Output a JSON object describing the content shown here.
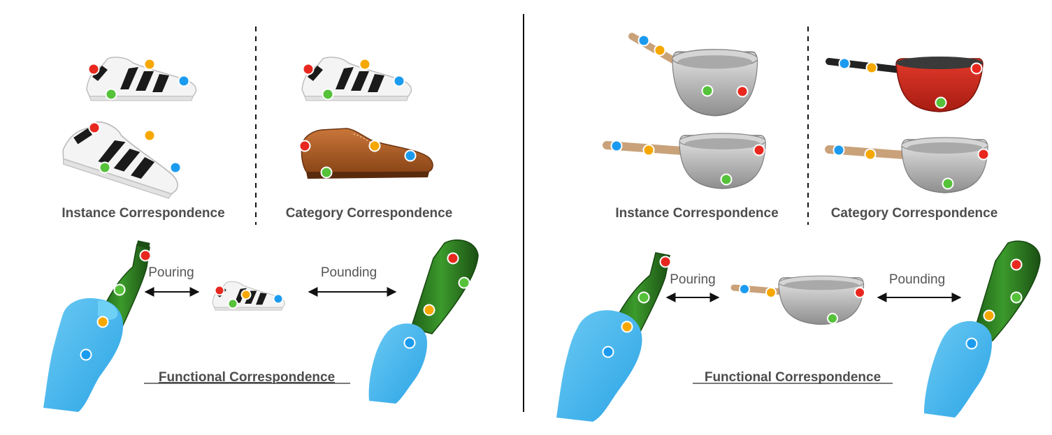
{
  "colors": {
    "red": "#e8281f",
    "orange": "#f6a800",
    "blue": "#1b9bf0",
    "green": "#55c23a",
    "hand": "#49b8ee",
    "bottle": "#2f7d22",
    "label_text": "#4d4d4d",
    "divider": "#111111"
  },
  "left_panel": {
    "instance_label": "Instance Correspondence",
    "category_label": "Category Correspondence",
    "action_left": "Pouring",
    "action_right": "Pounding",
    "functional_label": "Functional Correspondence",
    "objects": [
      "sneaker-icon",
      "brogue-shoe-icon",
      "bottle-icon",
      "hand-icon"
    ]
  },
  "right_panel": {
    "instance_label": "Instance Correspondence",
    "category_label": "Category Correspondence",
    "action_left": "Pouring",
    "action_right": "Pounding",
    "functional_label": "Functional Correspondence",
    "objects": [
      "saucepan-icon",
      "red-saucepan-icon",
      "bottle-icon",
      "hand-icon"
    ]
  }
}
